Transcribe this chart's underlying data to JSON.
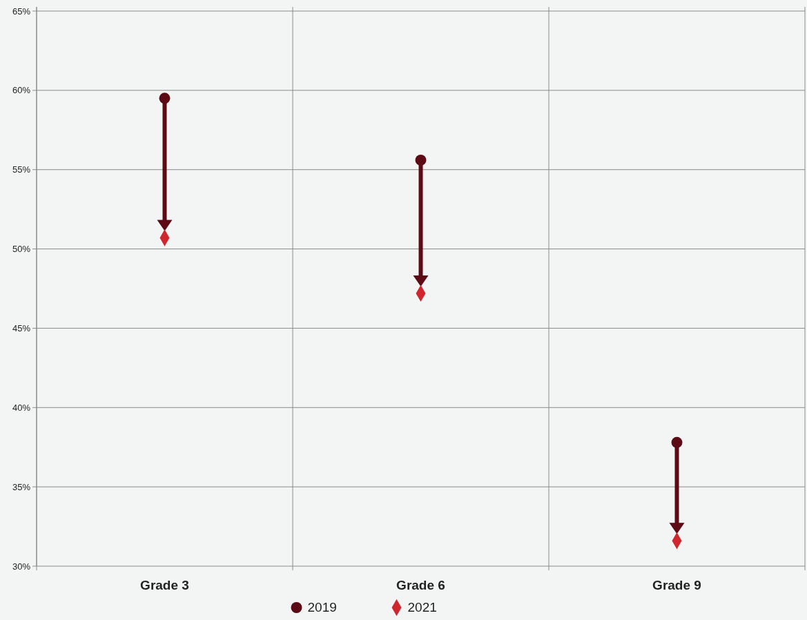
{
  "chart_data": {
    "type": "scatter",
    "categories": [
      "Grade 3",
      "Grade 6",
      "Grade 9"
    ],
    "series": [
      {
        "name": "2019",
        "color": "#5c0a14",
        "marker": "circle",
        "values": [
          59.5,
          55.6,
          37.8
        ]
      },
      {
        "name": "2021",
        "color": "#d0262e",
        "marker": "diamond",
        "values": [
          50.7,
          47.2,
          31.6
        ]
      }
    ],
    "ylim": [
      30,
      65
    ],
    "yticks": [
      {
        "value": 30,
        "label": "30%"
      },
      {
        "value": 35,
        "label": "35%"
      },
      {
        "value": 40,
        "label": "40%"
      },
      {
        "value": 45,
        "label": "45%"
      },
      {
        "value": 50,
        "label": "50%"
      },
      {
        "value": 55,
        "label": "55%"
      },
      {
        "value": 60,
        "label": "60%"
      },
      {
        "value": 65,
        "label": "65%"
      }
    ],
    "grid": true,
    "legend": "bottom"
  }
}
